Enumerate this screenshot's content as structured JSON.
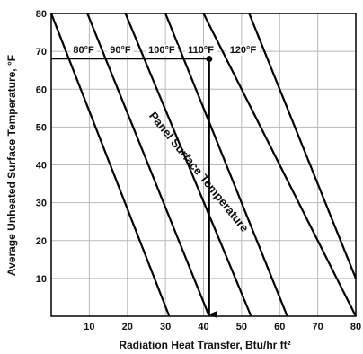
{
  "chart_data": {
    "type": "line",
    "xlabel": "Radiation Heat Transfer, Btu/hr ft²",
    "ylabel": "Average Unheated Surface Temperature, °F",
    "xlim": [
      0,
      80
    ],
    "ylim": [
      0,
      80
    ],
    "x_ticks": [
      "10",
      "20",
      "30",
      "40",
      "50",
      "60",
      "70",
      "80"
    ],
    "y_ticks": [
      "10",
      "20",
      "30",
      "40",
      "50",
      "60",
      "70",
      "80"
    ],
    "grid": true,
    "family_label": "Panel Surface Temperature",
    "series": [
      {
        "name": "80°F",
        "x": [
          0,
          31.0
        ],
        "y": [
          80,
          0
        ]
      },
      {
        "name": "90°F",
        "x": [
          9.5,
          41.5
        ],
        "y": [
          80,
          0
        ]
      },
      {
        "name": "100°F",
        "x": [
          19.5,
          52.5
        ],
        "y": [
          80,
          0
        ]
      },
      {
        "name": "110°F",
        "x": [
          30.0,
          62.0
        ],
        "y": [
          80,
          0
        ]
      },
      {
        "name": "120°F",
        "x": [
          40.0,
          80.0
        ],
        "y": [
          80,
          0
        ]
      },
      {
        "name": "",
        "x": [
          52.0,
          80.0
        ],
        "y": [
          80,
          10
        ]
      }
    ],
    "example_path": {
      "x": [
        0,
        41.5,
        41.5
      ],
      "y": [
        68,
        68,
        0
      ]
    }
  }
}
